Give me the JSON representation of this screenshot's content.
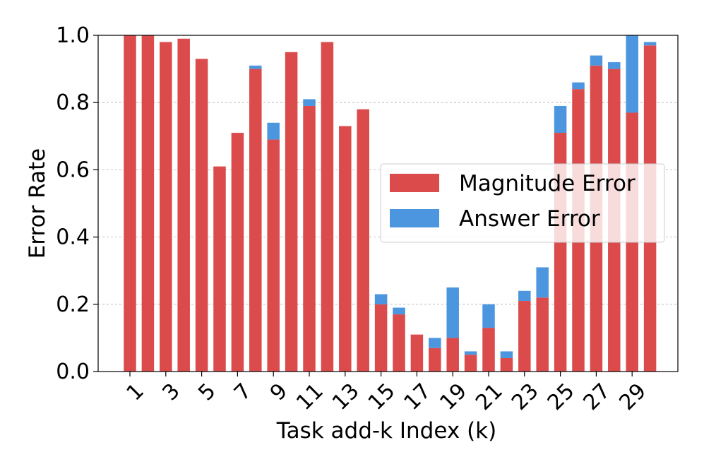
{
  "chart_data": {
    "type": "bar",
    "stacked": true,
    "xlabel": "Task add-k Index (k)",
    "ylabel": "Error Rate",
    "ylim": [
      0,
      1.0
    ],
    "yticks": [
      "0.0",
      "0.2",
      "0.4",
      "0.6",
      "0.8",
      "1.0"
    ],
    "grid": "y-dashed",
    "legend": "center-right",
    "categories": [
      1,
      2,
      3,
      4,
      5,
      6,
      7,
      8,
      9,
      10,
      11,
      12,
      13,
      14,
      15,
      16,
      17,
      18,
      19,
      20,
      21,
      22,
      23,
      24,
      25,
      26,
      27,
      28,
      29,
      30
    ],
    "xtick_labels": [
      "1",
      "3",
      "5",
      "7",
      "9",
      "11",
      "13",
      "15",
      "17",
      "19",
      "21",
      "23",
      "25",
      "27",
      "29"
    ],
    "series": [
      {
        "name": "Magnitude Error",
        "color": "#db4b4b",
        "values": [
          1.0,
          1.0,
          0.98,
          0.99,
          0.93,
          0.61,
          0.71,
          0.9,
          0.69,
          0.95,
          0.79,
          0.98,
          0.73,
          0.78,
          0.2,
          0.17,
          0.11,
          0.07,
          0.1,
          0.05,
          0.13,
          0.04,
          0.21,
          0.22,
          0.71,
          0.84,
          0.91,
          0.9,
          0.77,
          0.97
        ]
      },
      {
        "name": "Answer Error",
        "color": "#4c96e0",
        "values": [
          0.0,
          0.0,
          0.0,
          0.0,
          0.0,
          0.0,
          0.0,
          0.01,
          0.05,
          0.0,
          0.02,
          0.0,
          0.0,
          0.0,
          0.03,
          0.02,
          0.0,
          0.03,
          0.15,
          0.01,
          0.07,
          0.02,
          0.03,
          0.09,
          0.08,
          0.02,
          0.03,
          0.02,
          0.23,
          0.01
        ]
      }
    ]
  }
}
